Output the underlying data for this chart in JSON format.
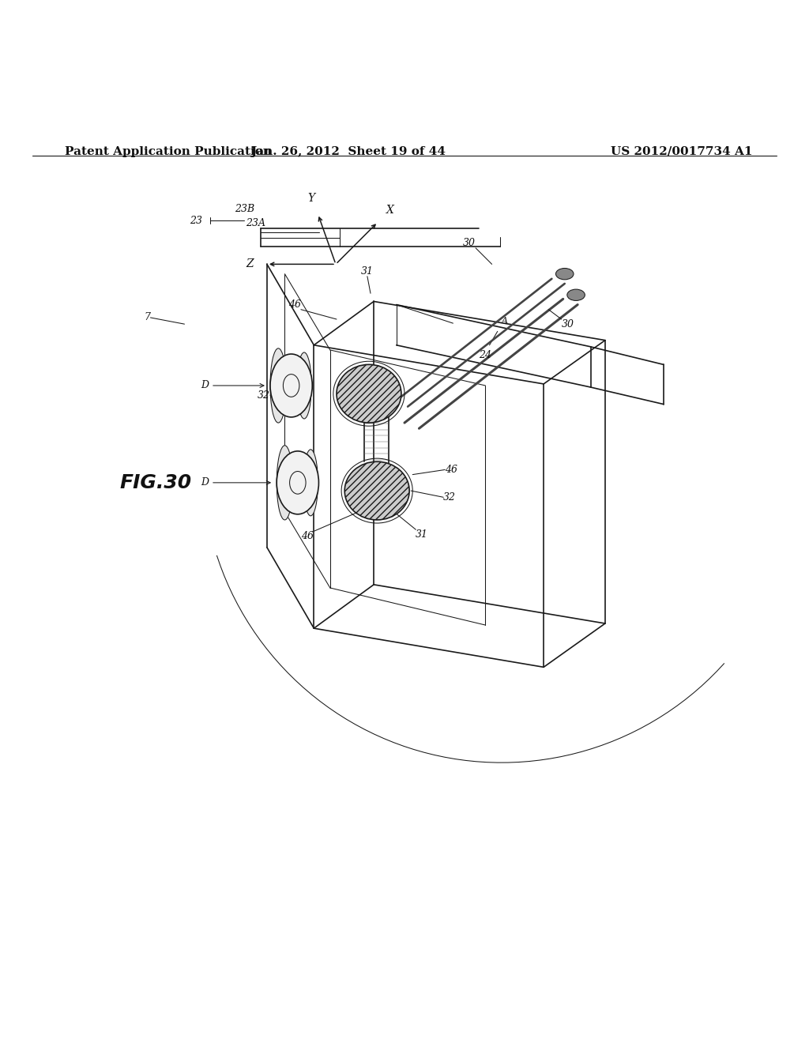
{
  "background_color": "#ffffff",
  "header_left": "Patent Application Publication",
  "header_center": "Jan. 26, 2012  Sheet 19 of 44",
  "header_right": "US 2012/0017734 A1",
  "fig_label": "FIG.30",
  "header_fontsize": 11,
  "fig_label_fontsize": 18,
  "line_color": "#1a1a1a",
  "page_width": 10.24,
  "page_height": 13.2
}
